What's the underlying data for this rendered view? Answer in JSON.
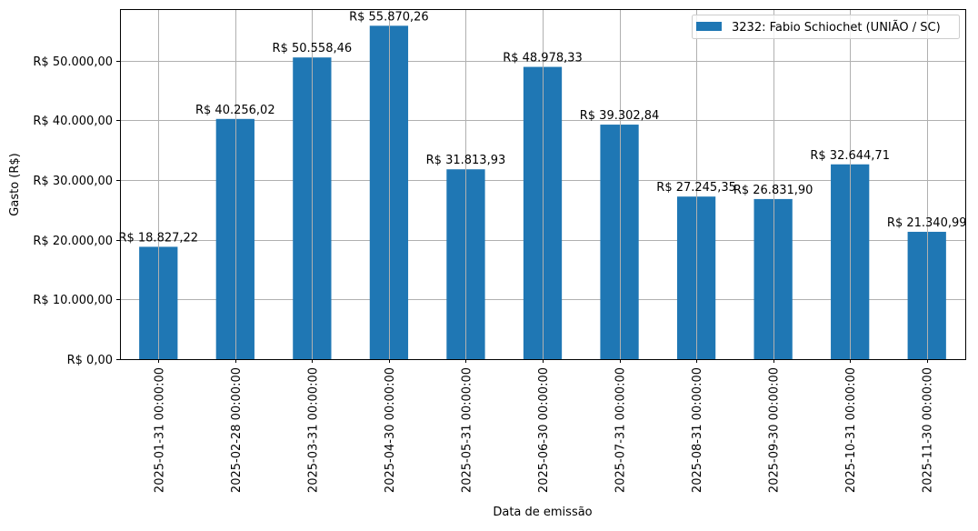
{
  "chart_data": {
    "type": "bar",
    "title": "",
    "xlabel": "Data de emissão",
    "ylabel": "Gasto (R$)",
    "ylim": [
      0,
      58663.77
    ],
    "yticks": [
      0,
      10000,
      20000,
      30000,
      40000,
      50000
    ],
    "ytick_labels": [
      "R$ 0,00",
      "R$ 10.000,00",
      "R$ 20.000,00",
      "R$ 30.000,00",
      "R$ 40.000,00",
      "R$ 50.000,00"
    ],
    "grid": true,
    "legend_position": "top-right",
    "categories": [
      "2025-01-31 00:00:00",
      "2025-02-28 00:00:00",
      "2025-03-31 00:00:00",
      "2025-04-30 00:00:00",
      "2025-05-31 00:00:00",
      "2025-06-30 00:00:00",
      "2025-07-31 00:00:00",
      "2025-08-31 00:00:00",
      "2025-09-30 00:00:00",
      "2025-10-31 00:00:00",
      "2025-11-30 00:00:00"
    ],
    "series": [
      {
        "name": "3232: Fabio Schiochet (UNIÃO / SC)",
        "color": "#1f77b4",
        "values": [
          18827.22,
          40256.02,
          50558.46,
          55870.26,
          31813.93,
          48978.33,
          39302.84,
          27245.35,
          26831.9,
          32644.71,
          21340.99
        ],
        "labels": [
          "R$ 18.827,22",
          "R$ 40.256,02",
          "R$ 50.558,46",
          "R$ 55.870,26",
          "R$ 31.813,93",
          "R$ 48.978,33",
          "R$ 39.302,84",
          "R$ 27.245,35",
          "R$ 26.831,90",
          "R$ 32.644,71",
          "R$ 21.340,99"
        ]
      }
    ]
  }
}
